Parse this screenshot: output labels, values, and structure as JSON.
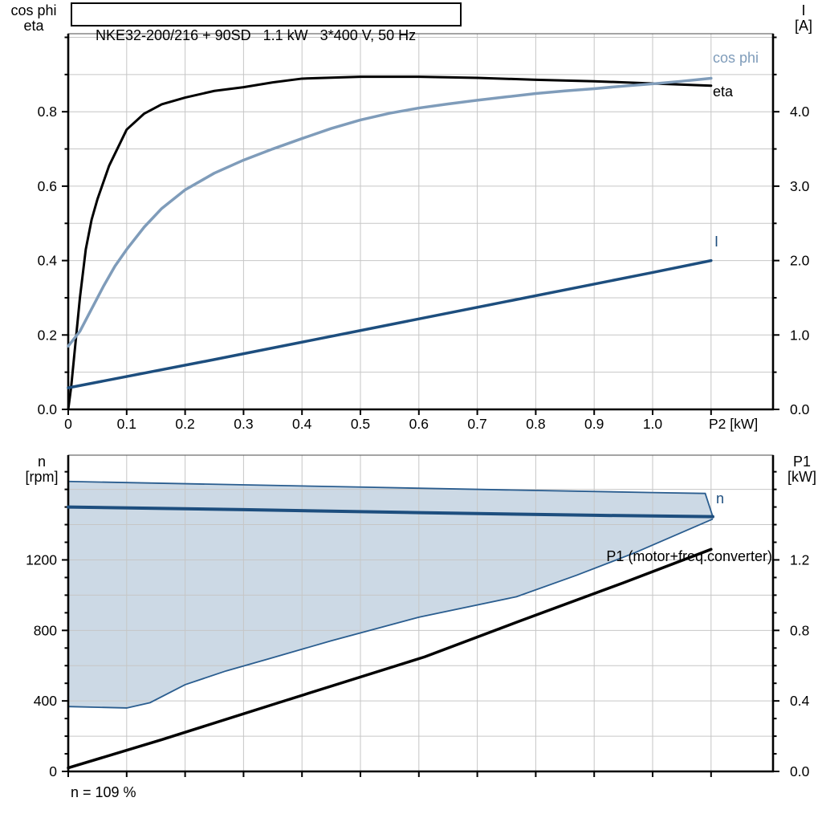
{
  "title": "NKE32-200/216 + 90SD   1.1 kW   3*400 V, 50 Hz",
  "footer_note": "n = 109 %",
  "colors": {
    "eta": "#000000",
    "cos_phi": "#7f9cba",
    "current": "#1d4e7e",
    "speed": "#1d4e7e",
    "p1": "#000000",
    "band_fill": "#ccd9e5",
    "band_border": "#2a5d8f",
    "grid": "#c6c6c6",
    "frame": "#4a4a4a",
    "axis": "#000000"
  },
  "chart_data": [
    {
      "type": "line",
      "x_axis": {
        "label": "P2 [kW]",
        "range": [
          0,
          1.206
        ],
        "grid_step": 0.1,
        "tick_values": [
          0,
          0.1,
          0.2,
          0.3,
          0.4,
          0.5,
          0.6,
          0.7,
          0.8,
          0.9,
          1.0
        ],
        "tick_labels": [
          "0",
          "0.1",
          "0.2",
          "0.3",
          "0.4",
          "0.5",
          "0.6",
          "0.7",
          "0.8",
          "0.9",
          "1.0"
        ]
      },
      "left_axis": {
        "label_lines": [
          "cos phi",
          "eta"
        ],
        "range": [
          0,
          1.0
        ],
        "grid_step": 0.1,
        "minor_step": 0.1,
        "tick_values": [
          0,
          0.2,
          0.4,
          0.6,
          0.8
        ],
        "tick_labels": [
          "0.0",
          "0.2",
          "0.4",
          "0.6",
          "0.8"
        ]
      },
      "right_axis": {
        "label_lines": [
          "I",
          "[A]"
        ],
        "range": [
          0,
          5.0
        ],
        "minor_step": 0.5,
        "tick_values": [
          0,
          1,
          2,
          3,
          4
        ],
        "tick_labels": [
          "0.0",
          "1.0",
          "2.0",
          "3.0",
          "4.0"
        ]
      },
      "series": [
        {
          "name": "eta",
          "axis": "left",
          "color_key": "eta",
          "width": 3,
          "points": [
            [
              0,
              0
            ],
            [
              0.005,
              0.06
            ],
            [
              0.01,
              0.14
            ],
            [
              0.02,
              0.3
            ],
            [
              0.03,
              0.43
            ],
            [
              0.04,
              0.51
            ],
            [
              0.05,
              0.565
            ],
            [
              0.07,
              0.655
            ],
            [
              0.1,
              0.752
            ],
            [
              0.13,
              0.795
            ],
            [
              0.16,
              0.82
            ],
            [
              0.2,
              0.838
            ],
            [
              0.25,
              0.856
            ],
            [
              0.3,
              0.866
            ],
            [
              0.35,
              0.879
            ],
            [
              0.4,
              0.889
            ],
            [
              0.5,
              0.894
            ],
            [
              0.6,
              0.894
            ],
            [
              0.7,
              0.891
            ],
            [
              0.8,
              0.886
            ],
            [
              0.9,
              0.882
            ],
            [
              1.0,
              0.876
            ],
            [
              1.1,
              0.87
            ]
          ]
        },
        {
          "name": "cos phi",
          "axis": "left",
          "color_key": "cos_phi",
          "width": 3.5,
          "points": [
            [
              0,
              0.17
            ],
            [
              0.02,
              0.21
            ],
            [
              0.04,
              0.27
            ],
            [
              0.06,
              0.33
            ],
            [
              0.08,
              0.385
            ],
            [
              0.1,
              0.43
            ],
            [
              0.13,
              0.49
            ],
            [
              0.16,
              0.54
            ],
            [
              0.2,
              0.59
            ],
            [
              0.25,
              0.635
            ],
            [
              0.3,
              0.67
            ],
            [
              0.35,
              0.7
            ],
            [
              0.4,
              0.728
            ],
            [
              0.45,
              0.755
            ],
            [
              0.5,
              0.778
            ],
            [
              0.55,
              0.796
            ],
            [
              0.6,
              0.81
            ],
            [
              0.65,
              0.821
            ],
            [
              0.7,
              0.831
            ],
            [
              0.75,
              0.84
            ],
            [
              0.8,
              0.849
            ],
            [
              0.85,
              0.856
            ],
            [
              0.9,
              0.862
            ],
            [
              0.95,
              0.869
            ],
            [
              1.0,
              0.875
            ],
            [
              1.05,
              0.882
            ],
            [
              1.1,
              0.89
            ]
          ]
        },
        {
          "name": "I",
          "axis": "right",
          "color_key": "current",
          "width": 3.5,
          "points": [
            [
              0,
              0.29
            ],
            [
              0.25,
              0.67
            ],
            [
              0.5,
              1.06
            ],
            [
              0.75,
              1.45
            ],
            [
              1.0,
              1.84
            ],
            [
              1.1,
              2.0
            ]
          ]
        }
      ]
    },
    {
      "type": "line+band",
      "x_axis": {
        "label": "",
        "range": [
          0,
          1.206
        ],
        "grid_step": 0.1,
        "tick_values": [],
        "tick_labels": []
      },
      "left_axis": {
        "label_lines": [
          "n",
          "[rpm]"
        ],
        "range": [
          0,
          1800
        ],
        "grid_step": 200,
        "minor_step": 100,
        "tick_values": [
          0,
          400,
          800,
          1200
        ],
        "tick_labels": [
          "0",
          "400",
          "800",
          "1200"
        ]
      },
      "right_axis": {
        "label_lines": [
          "P1",
          "[kW]"
        ],
        "range": [
          0,
          1.8
        ],
        "minor_step": 0.1,
        "tick_values": [
          0,
          0.4,
          0.8,
          1.2
        ],
        "tick_labels": [
          "0.0",
          "0.4",
          "0.8",
          "1.2"
        ]
      },
      "band": {
        "axis": "left",
        "upper": [
          [
            0,
            1645
          ],
          [
            0.25,
            1629
          ],
          [
            0.5,
            1613
          ],
          [
            0.75,
            1597
          ],
          [
            1.0,
            1582
          ],
          [
            1.09,
            1577
          ],
          [
            1.103,
            1445
          ]
        ],
        "lower": [
          [
            0,
            368
          ],
          [
            0.1,
            360
          ],
          [
            0.14,
            390
          ],
          [
            0.2,
            492
          ],
          [
            0.27,
            570
          ],
          [
            0.34,
            636
          ],
          [
            0.45,
            741
          ],
          [
            0.6,
            875
          ],
          [
            0.767,
            991
          ],
          [
            0.87,
            1113
          ],
          [
            0.97,
            1241
          ],
          [
            1.103,
            1432
          ]
        ]
      },
      "series": [
        {
          "name": "n",
          "axis": "left",
          "color_key": "speed",
          "width": 4,
          "points": [
            [
              0,
              1500
            ],
            [
              0.3,
              1485
            ],
            [
              0.6,
              1468
            ],
            [
              0.9,
              1453
            ],
            [
              1.103,
              1445
            ]
          ]
        },
        {
          "name": "P1 (motor+freq.converter)",
          "axis": "right",
          "color_key": "p1",
          "width": 3.5,
          "points": [
            [
              0,
              0.02
            ],
            [
              0.16,
              0.18
            ],
            [
              0.36,
              0.39
            ],
            [
              0.61,
              0.65
            ],
            [
              0.77,
              0.85
            ],
            [
              0.95,
              1.07
            ],
            [
              1.1,
              1.26
            ]
          ]
        }
      ]
    }
  ]
}
